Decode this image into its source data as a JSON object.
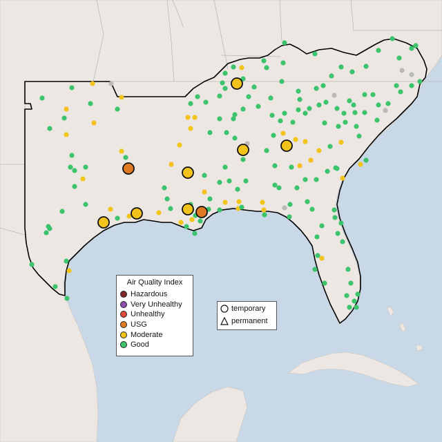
{
  "legend": {
    "title": "Air Quality Index",
    "categories": [
      {
        "label": "Hazardous",
        "color": "#7e2a2a"
      },
      {
        "label": "Very Unhealthy",
        "color": "#8f4fb0"
      },
      {
        "label": "Unhealthy",
        "color": "#e24b3b"
      },
      {
        "label": "USG",
        "color": "#e07b23"
      },
      {
        "label": "Moderate",
        "color": "#f2c31b"
      },
      {
        "label": "Good",
        "color": "#3cc46c"
      }
    ]
  },
  "site_types": {
    "temporary": "temporary",
    "permanent": "permanent"
  },
  "colors": {
    "water": "#c9d8e6",
    "land": "#ece7e2",
    "border": "#000000",
    "no_data": "#b9b9b9"
  }
}
